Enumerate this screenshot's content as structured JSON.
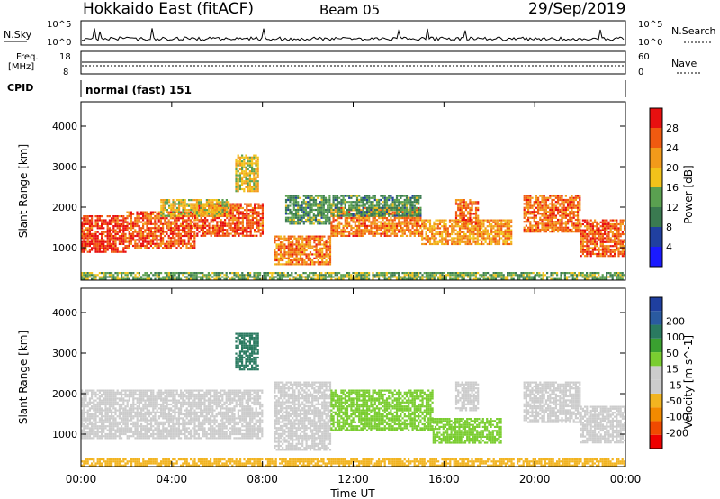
{
  "header": {
    "station": "Hokkaido East (fitACF)",
    "beam": "Beam 05",
    "date": "29/Sep/2019"
  },
  "top_panel": {
    "nsky_label": "N.Sky",
    "nsearch_label": "N.Search",
    "freq_label_line1": "Freq.",
    "freq_label_line2": "[MHz]",
    "nave_label": "Nave",
    "cpid_label": "CPID",
    "cpid_value": "normal (fast) 151",
    "noise_ticks_left": [
      "10^5",
      "10^0"
    ],
    "noise_ticks_right": [
      "10^5",
      "10^0"
    ],
    "freq_ticks": [
      "18",
      "8"
    ],
    "nave_ticks": [
      "60",
      "0"
    ]
  },
  "colors": {
    "power_scale": [
      "#1a1aff",
      "#2040a0",
      "#3a7a50",
      "#5aa050",
      "#f2c21a",
      "#f29a1a",
      "#f05a10",
      "#e81010"
    ],
    "velocity_scale": [
      "#ee0000",
      "#f04a00",
      "#f28a00",
      "#f2b420",
      "#cccccc",
      "#cccccc",
      "#7acd30",
      "#3aa030",
      "#2a7a60",
      "#2a5aa0",
      "#1f3f9f"
    ]
  },
  "chart_data": [
    {
      "type": "heatmap",
      "name": "power",
      "title": "",
      "xlabel": "Time UT",
      "ylabel": "Slant Range [km]",
      "xlim": [
        0,
        24
      ],
      "ylim": [
        200,
        4600
      ],
      "x_ticks": [
        "00:00",
        "04:00",
        "08:00",
        "12:00",
        "16:00",
        "20:00",
        "00:00"
      ],
      "y_ticks": [
        "1000",
        "2000",
        "3000",
        "4000"
      ],
      "colorbar": {
        "label": "Power [dB]",
        "range": [
          0,
          32
        ],
        "ticks": [
          "4",
          "8",
          "12",
          "16",
          "20",
          "24",
          "28"
        ]
      },
      "regions": [
        {
          "t0": 0.0,
          "t1": 2.0,
          "r0": 900,
          "r1": 1800,
          "value": 28
        },
        {
          "t0": 2.0,
          "t1": 5.0,
          "r0": 1000,
          "r1": 1900,
          "value": 26
        },
        {
          "t0": 5.0,
          "t1": 8.0,
          "r0": 1300,
          "r1": 2100,
          "value": 27
        },
        {
          "t0": 3.5,
          "t1": 6.5,
          "r0": 1800,
          "r1": 2200,
          "value": 18
        },
        {
          "t0": 6.8,
          "t1": 7.8,
          "r0": 2400,
          "r1": 3300,
          "value": 18
        },
        {
          "t0": 8.5,
          "t1": 11.0,
          "r0": 600,
          "r1": 1300,
          "value": 24
        },
        {
          "t0": 9.0,
          "t1": 11.0,
          "r0": 1600,
          "r1": 2300,
          "value": 12
        },
        {
          "t0": 11.0,
          "t1": 15.0,
          "r0": 1300,
          "r1": 2000,
          "value": 24
        },
        {
          "t0": 15.0,
          "t1": 19.0,
          "r0": 1100,
          "r1": 1700,
          "value": 22
        },
        {
          "t0": 11.0,
          "t1": 15.0,
          "r0": 1800,
          "r1": 2300,
          "value": 12
        },
        {
          "t0": 16.5,
          "t1": 17.5,
          "r0": 1600,
          "r1": 2200,
          "value": 25
        },
        {
          "t0": 19.5,
          "t1": 22.0,
          "r0": 1400,
          "r1": 2300,
          "value": 25
        },
        {
          "t0": 22.0,
          "t1": 24.0,
          "r0": 800,
          "r1": 1700,
          "value": 26
        },
        {
          "t0": 0.0,
          "t1": 24.0,
          "r0": 250,
          "r1": 400,
          "value": 14
        }
      ]
    },
    {
      "type": "heatmap",
      "name": "velocity",
      "title": "",
      "xlabel": "Time UT",
      "ylabel": "Slant Range [km]",
      "xlim": [
        0,
        24
      ],
      "ylim": [
        200,
        4600
      ],
      "x_ticks": [
        "00:00",
        "04:00",
        "08:00",
        "12:00",
        "16:00",
        "20:00",
        "00:00"
      ],
      "y_ticks": [
        "1000",
        "2000",
        "3000",
        "4000"
      ],
      "colorbar": {
        "label": "Velocity [m s^-1]",
        "range": [
          -250,
          250
        ],
        "ticks": [
          "200",
          "100",
          "50",
          "15",
          "-15",
          "-50",
          "-100",
          "-200"
        ]
      },
      "regions": [
        {
          "t0": 0.0,
          "t1": 8.0,
          "r0": 900,
          "r1": 2100,
          "value": 0
        },
        {
          "t0": 6.8,
          "t1": 7.8,
          "r0": 2600,
          "r1": 3500,
          "value": 180
        },
        {
          "t0": 8.5,
          "t1": 11.0,
          "r0": 600,
          "r1": 2300,
          "value": 0
        },
        {
          "t0": 11.0,
          "t1": 15.5,
          "r0": 1100,
          "r1": 2100,
          "value": 40
        },
        {
          "t0": 15.5,
          "t1": 18.5,
          "r0": 800,
          "r1": 1400,
          "value": 40
        },
        {
          "t0": 16.5,
          "t1": 17.5,
          "r0": 1600,
          "r1": 2300,
          "value": 0
        },
        {
          "t0": 19.5,
          "t1": 22.0,
          "r0": 1300,
          "r1": 2300,
          "value": 0
        },
        {
          "t0": 22.0,
          "t1": 24.0,
          "r0": 800,
          "r1": 1700,
          "value": 0
        },
        {
          "t0": 0.0,
          "t1": 24.0,
          "r0": 250,
          "r1": 400,
          "value": -40
        }
      ]
    }
  ]
}
